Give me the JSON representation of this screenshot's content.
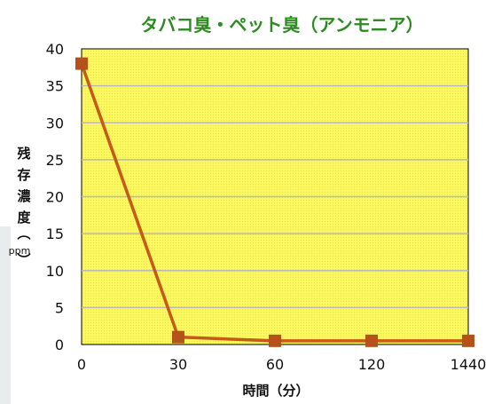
{
  "chart_data": {
    "type": "line",
    "title": "タバコ臭・ペット臭（アンモニア）",
    "xlabel": "時間（分）",
    "ylabel": "残存濃度（ppm）",
    "ylabel_chars": [
      "残",
      "存",
      "濃",
      "度"
    ],
    "ylabel_unit": "ppm",
    "ylabel_paren_open": "︵",
    "ylabel_paren_close": "︶",
    "categories": [
      "0",
      "30",
      "60",
      "120",
      "1440"
    ],
    "series": [
      {
        "values": [
          38,
          1,
          0.5,
          0.5,
          0.5
        ]
      }
    ],
    "ylim": [
      0,
      40
    ],
    "yticks": [
      0,
      5,
      10,
      15,
      20,
      25,
      30,
      35,
      40
    ],
    "grid": true,
    "colors": {
      "plot_background": "#fbf75f",
      "grid": "#b9b9b9",
      "line": "#c55a1a",
      "marker": "#b5521a",
      "title": "#2e8b22"
    }
  }
}
